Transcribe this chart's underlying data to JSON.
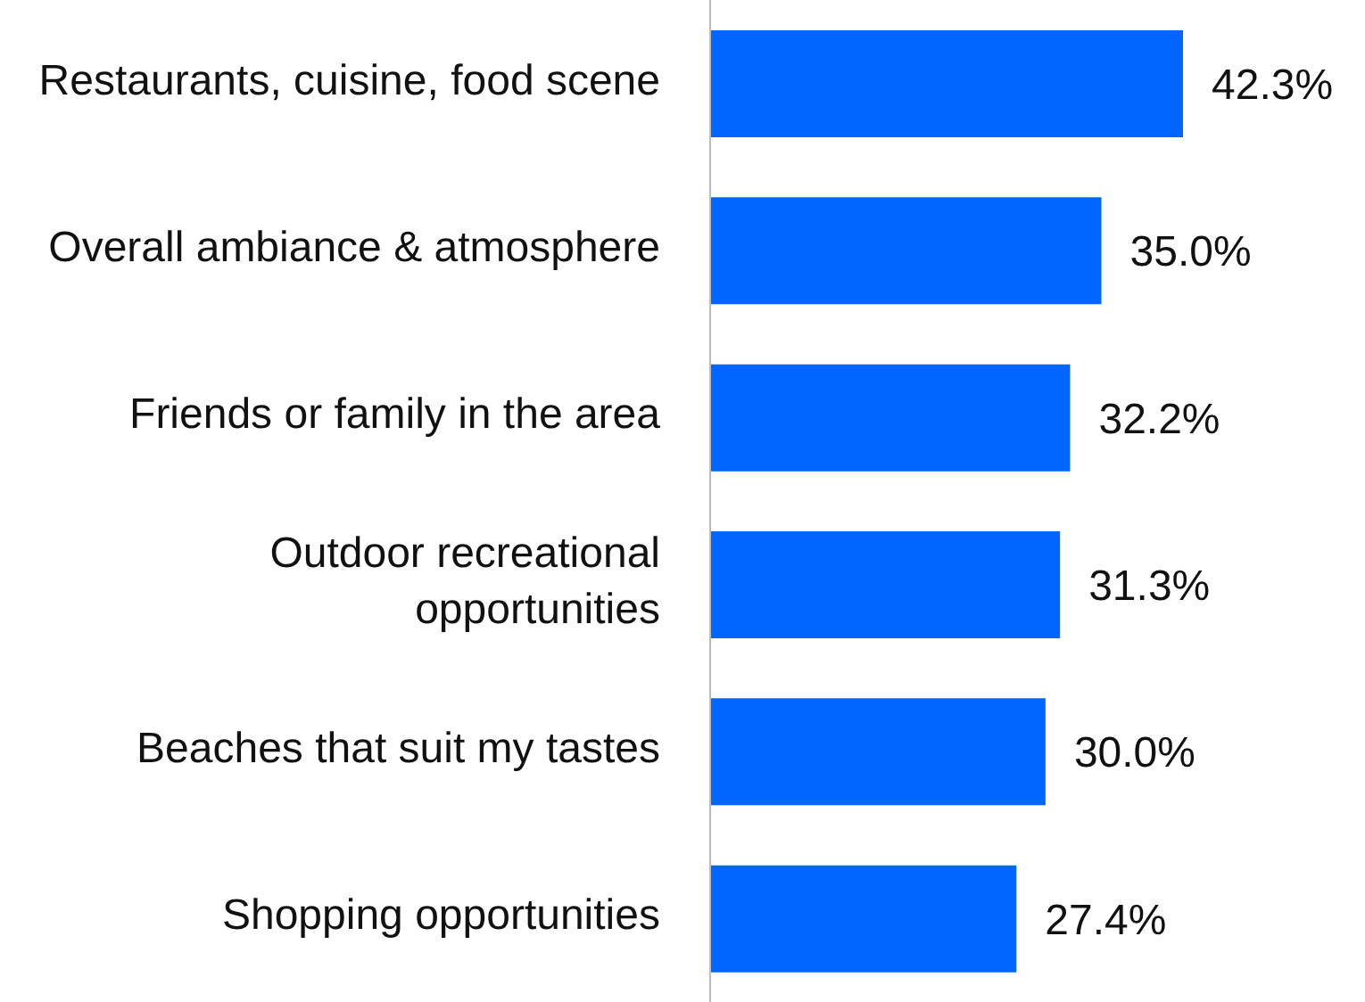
{
  "chart_data": {
    "type": "bar",
    "orientation": "horizontal",
    "categories": [
      "Restaurants, cuisine, food scene",
      "Overall ambiance & atmosphere",
      "Friends or family in the area",
      "Outdoor recreational opportunities",
      "Beaches that suit my tastes",
      "Shopping opportunities"
    ],
    "values": [
      42.3,
      35.0,
      32.2,
      31.3,
      30.0,
      27.4
    ],
    "value_labels": [
      "42.3%",
      "35.0%",
      "32.2%",
      "31.3%",
      "30.0%",
      "27.4%"
    ],
    "color": "#0066ff"
  }
}
